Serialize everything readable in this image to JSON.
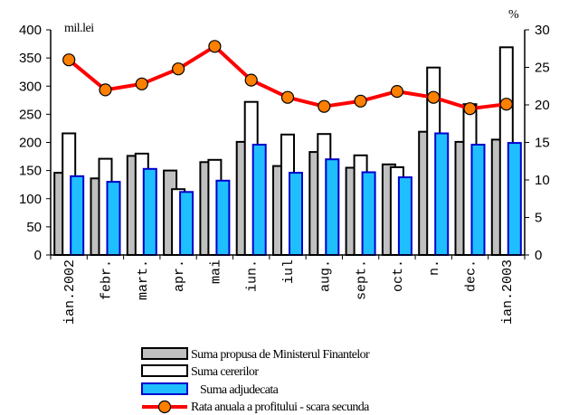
{
  "chart_data": {
    "type": "bar",
    "categories": [
      "ian.2002",
      "febr.",
      "mart.",
      "apr.",
      "mai",
      "iun.",
      "iul",
      "aug.",
      "sept.",
      "oct.",
      "n.",
      "dec.",
      "ian.2003"
    ],
    "series": [
      {
        "name": "Suma propusa de Ministerul Finantelor",
        "kind": "bar",
        "axis": "left",
        "color": "#c0c0c0",
        "values": [
          146,
          136,
          176,
          150,
          165,
          201,
          158,
          183,
          155,
          161,
          219,
          201,
          205
        ]
      },
      {
        "name": "Suma cererilor",
        "kind": "bar",
        "axis": "left",
        "color": "#ffffff",
        "values": [
          216,
          171,
          180,
          117,
          169,
          272,
          214,
          215,
          177,
          156,
          333,
          268,
          369
        ]
      },
      {
        "name": "Suma adjudecata",
        "kind": "bar",
        "axis": "left",
        "color": "#1fbfff",
        "values": [
          140,
          130,
          153,
          112,
          132,
          196,
          146,
          170,
          147,
          138,
          216,
          196,
          199
        ]
      },
      {
        "name": "Rata anuala a profitului - scara secunda",
        "kind": "line",
        "axis": "right",
        "color": "#ff0000",
        "values": [
          26.0,
          22.0,
          22.8,
          24.8,
          27.8,
          23.3,
          21.0,
          19.8,
          20.5,
          21.8,
          21.0,
          19.5,
          20.1
        ]
      }
    ],
    "yleft": {
      "label": "mil.lei",
      "ylim": [
        0,
        400
      ],
      "ticks": [
        "0",
        "50",
        "100",
        "150",
        "200",
        "250",
        "300",
        "350",
        "400"
      ]
    },
    "yright": {
      "label": "%",
      "ylim": [
        0,
        30
      ],
      "ticks": [
        "0",
        "5",
        "10",
        "15",
        "20",
        "25",
        "30"
      ]
    },
    "grid": false,
    "legend_position": "bottom"
  }
}
